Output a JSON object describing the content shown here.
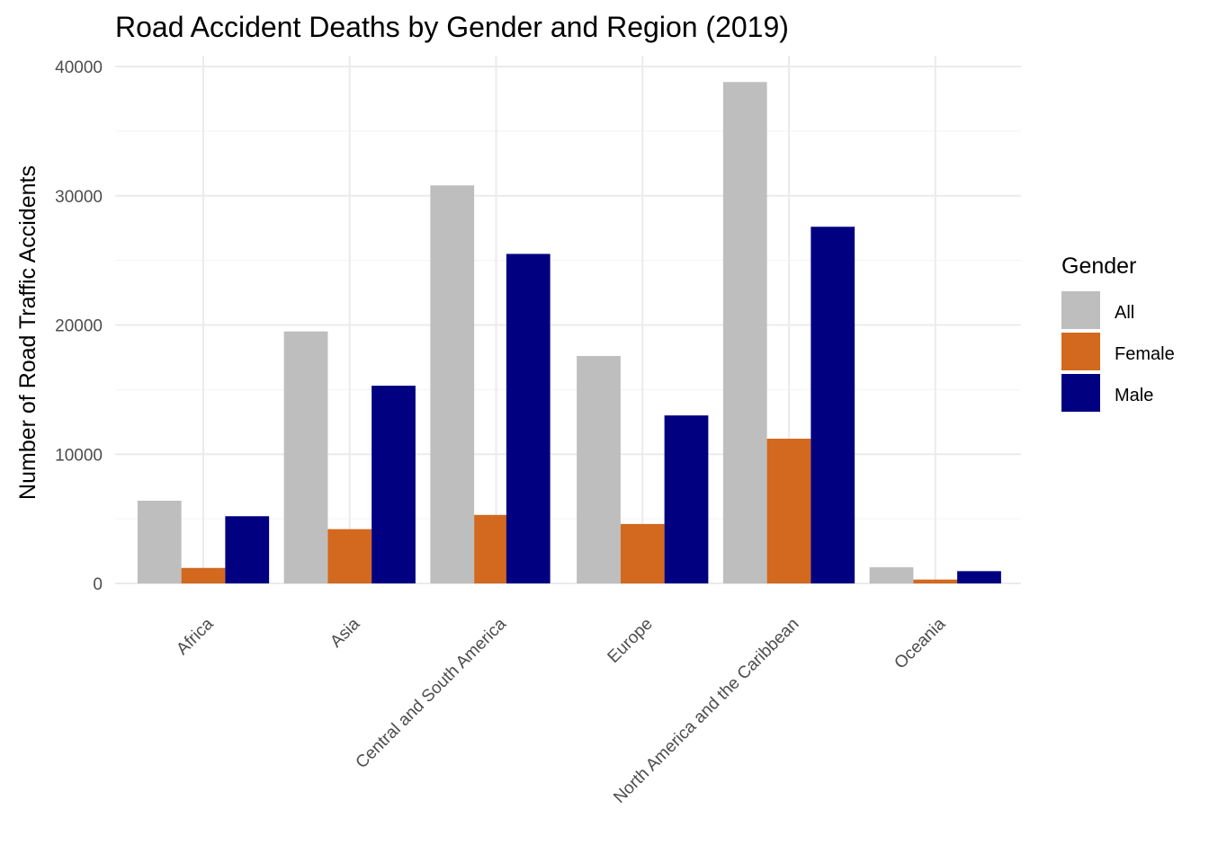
{
  "chart_data": {
    "type": "bar",
    "title": "Road Accident Deaths by Gender and Region (2019)",
    "xlabel": "",
    "ylabel": "Number of Road Traffic Accidents",
    "categories": [
      "Africa",
      "Asia",
      "Central and South America",
      "Europe",
      "North America and the Caribbean",
      "Oceania"
    ],
    "series": [
      {
        "name": "All",
        "color": "#bebebe",
        "values": [
          6400,
          19500,
          30800,
          17600,
          38800,
          1250
        ]
      },
      {
        "name": "Female",
        "color": "#d2691e",
        "values": [
          1200,
          4200,
          5300,
          4600,
          11200,
          300
        ]
      },
      {
        "name": "Male",
        "color": "#000080",
        "values": [
          5200,
          15300,
          null,
          13000,
          27600,
          950
        ]
      },
      {
        "name": "",
        "color": "#000080",
        "values": [
          null,
          null,
          25500,
          null,
          null,
          null
        ]
      }
    ],
    "ylim": [
      0,
      40000
    ],
    "yticks": [
      0,
      10000,
      20000,
      30000,
      40000
    ],
    "grid": true,
    "legend": {
      "title": "Gender",
      "position": "right",
      "entries": [
        "All",
        "Female",
        "Male"
      ]
    }
  }
}
